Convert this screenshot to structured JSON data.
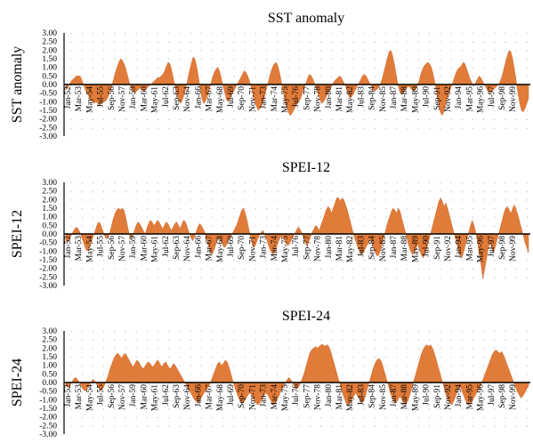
{
  "colors": {
    "fill": "#e07b39",
    "stroke": "#c8602a",
    "axis": "#000000",
    "grid": "#a9a9a9"
  },
  "chart_data": [
    {
      "type": "area",
      "title": "SST anomaly",
      "ylabel": "SST anomaly",
      "ylim": [
        -3.0,
        3.0
      ],
      "yticks": [
        "3.00",
        "2.50",
        "2.00",
        "1.50",
        "1.00",
        "0.50",
        "0.00",
        "-0.50",
        "-1.00",
        "-1.50",
        "-2.00",
        "-2.50",
        "-3.00"
      ],
      "grid": "dotted",
      "xticks": [
        "Jan-52",
        "Mar-53",
        "May-54",
        "Jul-55",
        "Sep-56",
        "Nov-57",
        "Jan-59",
        "Mar-60",
        "May-61",
        "Jul-62",
        "Sep-63",
        "Nov-64",
        "Jan-66",
        "Mar-67",
        "May-68",
        "Jul-69",
        "Sep-70",
        "Nov-71",
        "Jan-73",
        "Mar-74",
        "May-75",
        "Jul-76",
        "Sep-77",
        "Nov-78",
        "Jan-80",
        "Mar-81",
        "May-82",
        "Jul-83",
        "Sep-84",
        "Nov-85",
        "Jan-87",
        "Mar-88",
        "May-89",
        "Jul-90",
        "Sep-91",
        "Nov-92",
        "Jan-94",
        "Mar-95",
        "May-96",
        "Jul-97",
        "Sep-98",
        "Nov-99"
      ],
      "x_start": "Jan-52",
      "x_step": "1 month",
      "values": [
        -0.3,
        -0.2,
        0.0,
        0.2,
        0.3,
        0.4,
        0.5,
        0.5,
        0.5,
        0.3,
        0.0,
        -0.3,
        -0.5,
        -0.7,
        -0.9,
        -1.0,
        -1.1,
        -1.0,
        -1.1,
        -1.2,
        -1.1,
        -1.0,
        -1.0,
        -0.9,
        -0.7,
        -0.4,
        -0.1,
        0.3,
        0.7,
        1.0,
        1.3,
        1.5,
        1.4,
        1.2,
        0.9,
        0.5,
        0.1,
        -0.2,
        -0.4,
        -0.5,
        -0.4,
        -0.3,
        -0.2,
        -0.3,
        -0.4,
        -0.3,
        -0.2,
        -0.1,
        0.0,
        0.1,
        0.2,
        0.3,
        0.4,
        0.4,
        0.5,
        0.6,
        0.8,
        1.1,
        1.3,
        1.2,
        0.8,
        0.3,
        -0.2,
        -0.6,
        -0.9,
        -1.1,
        -0.9,
        -0.6,
        -0.2,
        0.3,
        0.8,
        1.2,
        1.6,
        1.5,
        1.1,
        0.5,
        -0.2,
        -0.8,
        -1.1,
        -1.0,
        -0.7,
        -0.4,
        0.0,
        0.4,
        0.7,
        0.9,
        1.0,
        0.8,
        0.4,
        -0.1,
        -0.5,
        -0.9,
        -1.0,
        -0.8,
        -0.6,
        -0.4,
        -0.2,
        0.0,
        0.2,
        0.4,
        0.6,
        0.8,
        0.7,
        0.5,
        0.2,
        -0.2,
        -0.6,
        -1.0,
        -1.3,
        -1.5,
        -1.4,
        -1.2,
        -0.9,
        -0.5,
        -0.1,
        0.3,
        0.7,
        1.0,
        1.2,
        1.3,
        1.1,
        0.7,
        0.2,
        -0.4,
        -0.9,
        -1.3,
        -1.6,
        -1.8,
        -1.7,
        -1.5,
        -1.3,
        -1.1,
        -1.0,
        -0.8,
        -0.5,
        -0.2,
        0.1,
        0.4,
        0.6,
        0.5,
        0.3,
        0.0,
        -0.3,
        -0.6,
        -0.9,
        -1.1,
        -1.0,
        -0.8,
        -0.6,
        -0.4,
        -0.2,
        0.0,
        0.2,
        0.3,
        0.4,
        0.5,
        0.4,
        0.2,
        0.0,
        -0.3,
        -0.6,
        -0.8,
        -0.7,
        -0.5,
        -0.3,
        -0.1,
        0.1,
        0.3,
        0.5,
        0.6,
        0.5,
        0.3,
        0.1,
        -0.1,
        -0.3,
        -0.4,
        -0.3,
        -0.2,
        0.0,
        0.3,
        0.7,
        1.1,
        1.5,
        1.9,
        2.0,
        1.7,
        1.2,
        0.6,
        0.0,
        -0.4,
        -0.6,
        -0.5,
        -0.3,
        -0.2,
        -0.1,
        -0.2,
        -0.3,
        -0.4,
        -0.3,
        -0.1,
        0.2,
        0.6,
        0.9,
        1.1,
        1.2,
        1.3,
        1.2,
        1.0,
        0.6,
        0.1,
        -0.5,
        -1.1,
        -1.6,
        -1.8,
        -1.6,
        -1.2,
        -0.8,
        -0.5,
        -0.2,
        0.1,
        0.4,
        0.7,
        0.9,
        1.0,
        1.1,
        1.3,
        1.2,
        0.9,
        0.6,
        0.3,
        0.1,
        -0.1,
        0.1,
        0.3,
        0.5,
        0.4,
        0.2,
        0.0,
        -0.2,
        -0.4,
        -0.5,
        -0.4,
        -0.3,
        -0.2,
        -0.1,
        0.0,
        0.2,
        0.5,
        0.9,
        1.3,
        1.7,
        2.0,
        1.9,
        1.5,
        0.9,
        0.2,
        -0.5,
        -1.1,
        -1.5,
        -1.6,
        -1.4,
        -1.1,
        -0.8
      ]
    },
    {
      "type": "area",
      "title": "SPEI-12",
      "ylabel": "SPEI-12",
      "ylim": [
        -3.0,
        3.0
      ],
      "yticks": [
        "3.00",
        "2.50",
        "2.00",
        "1.50",
        "1.00",
        "0.50",
        "0.00",
        "-0.50",
        "-1.00",
        "-1.50",
        "-2.00",
        "-2.50",
        "-3.00"
      ],
      "grid": "dotted",
      "xticks": [
        "Jan-52",
        "Mar-53",
        "May-54",
        "Jul-55",
        "Sep-56",
        "Nov-57",
        "Jan-59",
        "Mar-60",
        "May-61",
        "Jul-62",
        "Sep-63",
        "Nov-64",
        "Jan-66",
        "Mar-67",
        "May-68",
        "Jul-69",
        "Sep-70",
        "Nov-71",
        "Jan-73",
        "Mar-74",
        "May-75",
        "Jul-76",
        "Sep-77",
        "Nov-78",
        "Jan-80",
        "Mar-81",
        "May-82",
        "Jul-83",
        "Sep-84",
        "Nov-85",
        "Jan-87",
        "Mar-88",
        "May-89",
        "Jul-90",
        "Sep-91",
        "Nov-92",
        "Jan-94",
        "Mar-95",
        "May-96",
        "Jul-97",
        "Sep-98",
        "Nov-99"
      ],
      "x_start": "Jan-52",
      "x_step": "1 month",
      "values": [
        -0.4,
        -0.5,
        -0.3,
        -0.1,
        0.1,
        0.3,
        0.4,
        0.3,
        0.1,
        -0.2,
        -0.5,
        -0.8,
        -1.0,
        -0.9,
        -0.6,
        -0.3,
        0.0,
        0.3,
        0.6,
        0.7,
        0.5,
        0.2,
        -0.1,
        -0.3,
        -0.2,
        0.1,
        0.5,
        0.9,
        1.2,
        1.4,
        1.5,
        1.4,
        1.5,
        1.4,
        1.0,
        0.5,
        0.0,
        -0.3,
        -0.1,
        0.2,
        0.5,
        0.7,
        0.6,
        0.4,
        0.2,
        0.0,
        0.3,
        0.6,
        0.8,
        0.7,
        0.5,
        0.6,
        0.8,
        0.7,
        0.5,
        0.3,
        0.5,
        0.7,
        0.6,
        0.4,
        0.2,
        0.4,
        0.6,
        0.7,
        0.5,
        0.3,
        0.6,
        0.8,
        0.7,
        0.4,
        0.1,
        -0.2,
        -0.4,
        -0.2,
        0.1,
        0.4,
        0.6,
        0.5,
        0.3,
        0.1,
        -0.3,
        -0.7,
        -1.0,
        -1.2,
        -1.0,
        -0.7,
        -0.4,
        -0.2,
        -0.4,
        -0.6,
        -0.8,
        -0.7,
        -0.5,
        -0.3,
        -0.1,
        0.1,
        0.3,
        0.5,
        0.8,
        1.1,
        1.4,
        1.5,
        1.2,
        0.8,
        0.3,
        -0.2,
        -0.6,
        -0.8,
        -0.6,
        -0.3,
        -0.1,
        0.1,
        0.2,
        0.0,
        -0.3,
        -0.6,
        -0.9,
        -1.1,
        -1.2,
        -1.0,
        -0.7,
        -0.4,
        -0.2,
        -0.1,
        -0.3,
        -0.5,
        -0.7,
        -0.6,
        -0.4,
        -0.2,
        0.0,
        0.2,
        0.4,
        0.3,
        0.1,
        -0.2,
        -0.5,
        -0.7,
        -0.5,
        -0.2,
        0.1,
        0.3,
        0.5,
        0.4,
        0.2,
        0.5,
        0.8,
        1.1,
        1.4,
        1.6,
        1.5,
        1.2,
        1.5,
        1.8,
        2.1,
        2.1,
        1.9,
        2.1,
        2.0,
        1.7,
        1.4,
        1.0,
        0.6,
        0.2,
        -0.2,
        -0.5,
        -0.8,
        -1.0,
        -1.2,
        -1.1,
        -0.9,
        -0.7,
        -0.5,
        -0.3,
        -0.5,
        -0.8,
        -1.1,
        -1.3,
        -1.2,
        -0.9,
        -0.5,
        -0.1,
        0.3,
        0.7,
        1.0,
        1.3,
        1.5,
        1.4,
        1.2,
        1.5,
        1.3,
        0.9,
        0.5,
        0.1,
        -0.3,
        -0.7,
        -1.0,
        -1.2,
        -1.1,
        -0.8,
        -0.6,
        -0.9,
        -1.2,
        -1.4,
        -1.2,
        -0.9,
        -0.5,
        -0.1,
        0.3,
        0.7,
        1.1,
        1.5,
        1.9,
        2.1,
        1.9,
        1.6,
        1.8,
        1.5,
        1.1,
        0.7,
        0.3,
        -0.1,
        -0.5,
        -0.9,
        -1.2,
        -1.4,
        -1.1,
        -0.7,
        -0.3,
        0.1,
        0.5,
        0.8,
        0.5,
        0.1,
        -0.5,
        -1.2,
        -1.8,
        -2.6,
        -2.1,
        -1.5,
        -0.9,
        -0.5,
        -0.8,
        -1.1,
        -0.8,
        -0.4,
        0.0,
        0.4,
        0.8,
        1.2,
        1.5,
        1.6,
        1.4,
        1.2,
        1.5,
        1.7,
        1.4,
        1.1,
        0.7,
        0.3,
        -0.1,
        -0.5,
        -0.8,
        -1.1
      ]
    },
    {
      "type": "area",
      "title": "SPEI-24",
      "ylabel": "SPEI-24",
      "ylim": [
        -3.0,
        3.0
      ],
      "yticks": [
        "3.00",
        "2.50",
        "2.00",
        "1.50",
        "1.00",
        "0.50",
        "0.00",
        "-0.50",
        "-1.00",
        "-1.50",
        "-2.00",
        "-2.50",
        "-3.00"
      ],
      "grid": "dotted",
      "xticks": [
        "Jan-52",
        "Mar-53",
        "May-54",
        "Jul-55",
        "Sep-56",
        "Nov-57",
        "Jan-59",
        "Mar-60",
        "May-61",
        "Jul-62",
        "Sep-63",
        "Nov-64",
        "Jan-66",
        "Mar-67",
        "May-68",
        "Jul-69",
        "Sep-70",
        "Nov-71",
        "Jan-73",
        "Mar-74",
        "May-75",
        "Jul-76",
        "Sep-77",
        "Nov-78",
        "Jan-80",
        "Mar-81",
        "May-82",
        "Jul-83",
        "Sep-84",
        "Nov-85",
        "Jan-87",
        "Mar-88",
        "May-89",
        "Jul-90",
        "Sep-91",
        "Nov-92",
        "Jan-94",
        "Mar-95",
        "May-96",
        "Jul-97",
        "Sep-98",
        "Nov-99"
      ],
      "x_start": "Jan-52",
      "x_step": "1 month",
      "values": [
        -0.2,
        -0.3,
        -0.2,
        0.0,
        0.2,
        0.3,
        0.2,
        0.0,
        -0.2,
        -0.4,
        -0.5,
        -0.4,
        -0.2,
        0.0,
        0.2,
        0.1,
        -0.1,
        -0.3,
        -0.5,
        -0.4,
        -0.2,
        0.1,
        0.4,
        0.8,
        1.1,
        1.4,
        1.6,
        1.7,
        1.6,
        1.4,
        1.6,
        1.7,
        1.5,
        1.3,
        1.1,
        0.9,
        1.1,
        1.3,
        1.2,
        1.0,
        0.8,
        0.9,
        1.1,
        1.2,
        1.1,
        0.9,
        1.0,
        1.2,
        1.3,
        1.1,
        0.9,
        1.1,
        1.2,
        1.0,
        0.8,
        0.9,
        1.1,
        1.0,
        0.8,
        0.6,
        0.4,
        0.2,
        0.0,
        -0.2,
        -0.4,
        -0.6,
        -0.8,
        -1.0,
        -1.1,
        -1.2,
        -1.0,
        -0.8,
        -0.6,
        -0.5,
        -0.3,
        -0.1,
        0.2,
        0.5,
        0.8,
        1.1,
        1.2,
        1.0,
        1.1,
        1.3,
        1.2,
        0.9,
        0.5,
        0.1,
        -0.3,
        -0.6,
        -0.9,
        -1.1,
        -1.2,
        -1.1,
        -0.9,
        -0.7,
        -0.6,
        -0.8,
        -1.0,
        -1.2,
        -1.3,
        -1.2,
        -1.0,
        -0.8,
        -0.6,
        -0.7,
        -0.9,
        -1.1,
        -1.3,
        -1.2,
        -1.0,
        -0.8,
        -0.5,
        -0.3,
        -0.1,
        0.1,
        0.3,
        0.2,
        0.0,
        -0.2,
        -0.4,
        -0.3,
        -0.1,
        0.2,
        0.5,
        0.9,
        1.3,
        1.7,
        1.9,
        2.0,
        2.1,
        2.0,
        2.1,
        2.2,
        2.2,
        2.1,
        2.2,
        2.1,
        1.8,
        1.4,
        1.0,
        0.6,
        0.2,
        -0.2,
        -0.6,
        -0.9,
        -1.2,
        -1.3,
        -1.2,
        -1.0,
        -0.8,
        -0.6,
        -0.8,
        -1.0,
        -1.2,
        -1.1,
        -0.8,
        -0.4,
        0.0,
        0.4,
        0.8,
        1.1,
        1.3,
        1.4,
        1.3,
        1.0,
        0.6,
        0.2,
        -0.2,
        -0.6,
        -0.9,
        -1.1,
        -1.2,
        -1.0,
        -0.8,
        -1.0,
        -1.2,
        -1.3,
        -1.1,
        -0.8,
        -0.4,
        0.0,
        0.4,
        0.8,
        1.2,
        1.6,
        1.9,
        2.1,
        2.2,
        2.1,
        2.2,
        2.0,
        1.7,
        1.3,
        0.9,
        0.5,
        0.1,
        -0.3,
        -0.7,
        -1.0,
        -1.2,
        -1.3,
        -1.1,
        -0.8,
        -0.5,
        -0.2,
        -0.4,
        -0.7,
        -1.0,
        -1.2,
        -1.3,
        -1.2,
        -1.0,
        -0.8,
        -0.6,
        -0.4,
        -0.2,
        0.1,
        0.4,
        0.7,
        1.0,
        1.3,
        1.6,
        1.8,
        1.9,
        1.8,
        1.7,
        1.8,
        1.6,
        1.3,
        1.0,
        0.7,
        0.4,
        0.1,
        -0.2,
        -0.5,
        -0.7,
        -0.9,
        -0.8,
        -0.6,
        -0.4,
        -0.2
      ]
    }
  ]
}
